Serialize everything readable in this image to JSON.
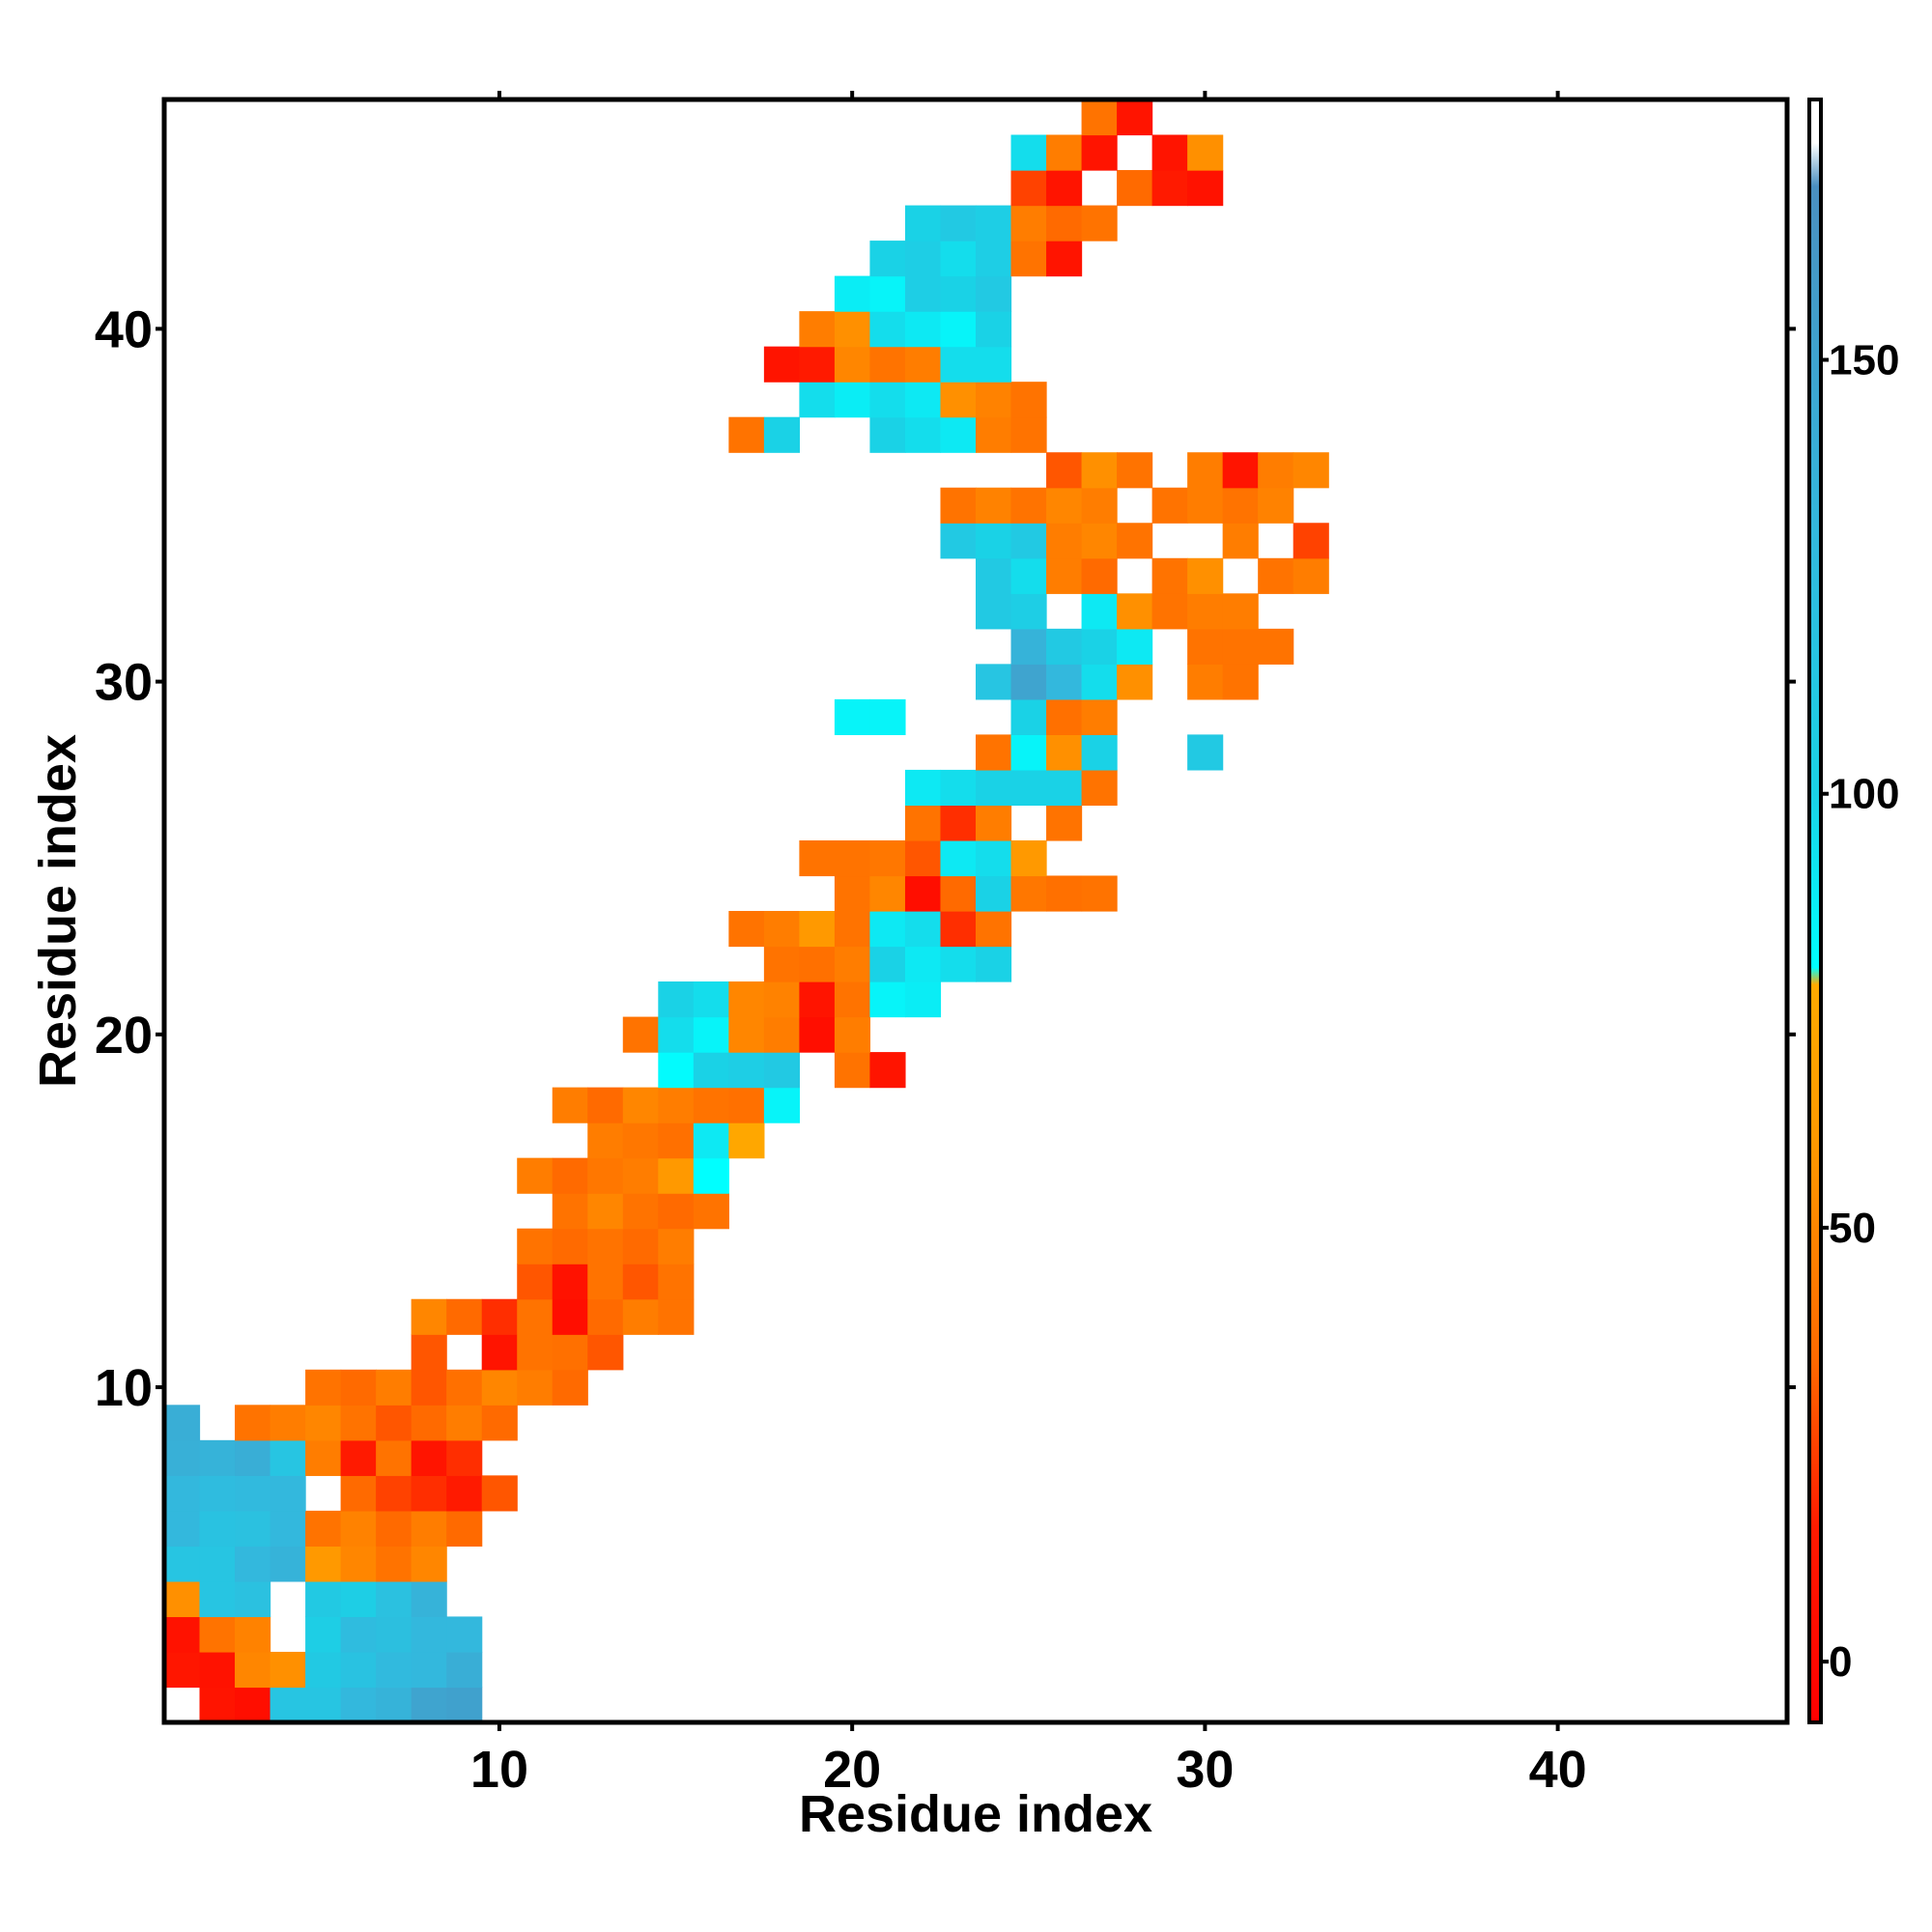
{
  "chart_data": {
    "type": "heatmap",
    "title": "",
    "xlabel": "Residue index",
    "ylabel": "Residue index",
    "xlim": [
      0.5,
      46.5
    ],
    "ylim": [
      0.5,
      46.5
    ],
    "x_ticks": [
      10,
      20,
      30,
      40
    ],
    "y_ticks": [
      10,
      20,
      30,
      40
    ],
    "x_tick_labels": [
      "10",
      "20",
      "30",
      "40"
    ],
    "y_tick_labels": [
      "10",
      "20",
      "30",
      "40"
    ],
    "colorbar": {
      "range": [
        -7,
        180
      ],
      "ticks": [
        0,
        50,
        100,
        150
      ],
      "tick_labels": [
        "0",
        "50",
        "100",
        "150"
      ],
      "stops": [
        {
          "v": -7,
          "color": "#ff0000"
        },
        {
          "v": 15,
          "color": "#ff1a00"
        },
        {
          "v": 35,
          "color": "#ff6a00"
        },
        {
          "v": 60,
          "color": "#ff9900"
        },
        {
          "v": 78,
          "color": "#ffaa00"
        },
        {
          "v": 80,
          "color": "#00ffff"
        },
        {
          "v": 100,
          "color": "#1ad2e6"
        },
        {
          "v": 130,
          "color": "#33b8dd"
        },
        {
          "v": 170,
          "color": "#4a8fc0"
        },
        {
          "v": 175,
          "color": "#ffffff"
        },
        {
          "v": 180,
          "color": "#ffffff"
        }
      ]
    },
    "grid": false,
    "legend": "right colorbar",
    "cells": [
      [
        1,
        2,
        10
      ],
      [
        1,
        3,
        5
      ],
      [
        1,
        4,
        115
      ],
      [
        1,
        5,
        115
      ],
      [
        1,
        6,
        130
      ],
      [
        1,
        7,
        135
      ],
      [
        1,
        8,
        150
      ],
      [
        1,
        9,
        152
      ],
      [
        2,
        1,
        12
      ],
      [
        2,
        2,
        8
      ],
      [
        2,
        3,
        50
      ],
      [
        2,
        4,
        55
      ],
      [
        2,
        5,
        110
      ],
      [
        2,
        6,
        118
      ],
      [
        2,
        7,
        128
      ],
      [
        2,
        8,
        130
      ],
      [
        2,
        9,
        140
      ],
      [
        3,
        1,
        8
      ],
      [
        3,
        2,
        40
      ],
      [
        3,
        3,
        48
      ],
      [
        3,
        5,
        105
      ],
      [
        3,
        6,
        125
      ],
      [
        3,
        7,
        122
      ],
      [
        3,
        8,
        130
      ],
      [
        3,
        9,
        130
      ],
      [
        4,
        1,
        55
      ],
      [
        4,
        2,
        115
      ],
      [
        4,
        3,
        120
      ],
      [
        4,
        5,
        110
      ],
      [
        4,
        6,
        105
      ],
      [
        4,
        7,
        120
      ],
      [
        4,
        8,
        135
      ],
      [
        5,
        1,
        115
      ],
      [
        5,
        2,
        115
      ],
      [
        5,
        3,
        130
      ],
      [
        5,
        4,
        135
      ],
      [
        5,
        5,
        60
      ],
      [
        5,
        6,
        50
      ],
      [
        5,
        7,
        40
      ],
      [
        5,
        8,
        50
      ],
      [
        6,
        1,
        130
      ],
      [
        6,
        2,
        118
      ],
      [
        6,
        3,
        120
      ],
      [
        6,
        4,
        130
      ],
      [
        6,
        5,
        40
      ],
      [
        6,
        6,
        48
      ],
      [
        6,
        7,
        35
      ],
      [
        6,
        8,
        45
      ],
      [
        6,
        9,
        35
      ],
      [
        7,
        1,
        130
      ],
      [
        7,
        2,
        125
      ],
      [
        7,
        3,
        128
      ],
      [
        7,
        4,
        130
      ],
      [
        7,
        6,
        35
      ],
      [
        7,
        7,
        25
      ],
      [
        7,
        8,
        20
      ],
      [
        7,
        9,
        15
      ],
      [
        7,
        10,
        30
      ],
      [
        8,
        1,
        138
      ],
      [
        8,
        2,
        135
      ],
      [
        8,
        3,
        140
      ],
      [
        8,
        4,
        115
      ],
      [
        8,
        5,
        45
      ],
      [
        8,
        6,
        15
      ],
      [
        8,
        7,
        40
      ],
      [
        8,
        8,
        10
      ],
      [
        8,
        9,
        20
      ],
      [
        9,
        1,
        140
      ],
      [
        9,
        3,
        40
      ],
      [
        9,
        4,
        45
      ],
      [
        9,
        5,
        50
      ],
      [
        9,
        6,
        40
      ],
      [
        9,
        7,
        30
      ],
      [
        9,
        8,
        35
      ],
      [
        9,
        9,
        45
      ],
      [
        9,
        10,
        35
      ],
      [
        10,
        5,
        40
      ],
      [
        10,
        6,
        35
      ],
      [
        10,
        7,
        45
      ],
      [
        10,
        8,
        30
      ],
      [
        10,
        9,
        38
      ],
      [
        10,
        10,
        50
      ],
      [
        10,
        11,
        45
      ],
      [
        10,
        12,
        35
      ],
      [
        11,
        8,
        30
      ],
      [
        11,
        10,
        10
      ],
      [
        11,
        11,
        40
      ],
      [
        11,
        12,
        38
      ],
      [
        11,
        13,
        30
      ],
      [
        12,
        8,
        50
      ],
      [
        12,
        9,
        35
      ],
      [
        12,
        10,
        20
      ],
      [
        12,
        11,
        40
      ],
      [
        12,
        12,
        5
      ],
      [
        12,
        13,
        35
      ],
      [
        12,
        14,
        45
      ],
      [
        12,
        15,
        40
      ],
      [
        13,
        11,
        30
      ],
      [
        13,
        12,
        8
      ],
      [
        13,
        13,
        40
      ],
      [
        13,
        14,
        30
      ],
      [
        13,
        15,
        40
      ],
      [
        14,
        11,
        40
      ],
      [
        14,
        12,
        35
      ],
      [
        14,
        13,
        40
      ],
      [
        14,
        14,
        35
      ],
      [
        14,
        15,
        45
      ],
      [
        15,
        12,
        40
      ],
      [
        15,
        13,
        50
      ],
      [
        15,
        14,
        40
      ],
      [
        15,
        15,
        35
      ],
      [
        15,
        16,
        40
      ],
      [
        16,
        11,
        45
      ],
      [
        16,
        12,
        35
      ],
      [
        16,
        13,
        42
      ],
      [
        16,
        14,
        45
      ],
      [
        16,
        15,
        60
      ],
      [
        16,
        16,
        80
      ],
      [
        17,
        13,
        45
      ],
      [
        17,
        14,
        42
      ],
      [
        17,
        15,
        38
      ],
      [
        17,
        16,
        90
      ],
      [
        17,
        17,
        75
      ],
      [
        18,
        12,
        45
      ],
      [
        18,
        13,
        35
      ],
      [
        18,
        14,
        50
      ],
      [
        18,
        15,
        45
      ],
      [
        18,
        16,
        40
      ],
      [
        18,
        17,
        38
      ],
      [
        18,
        18,
        85
      ],
      [
        19,
        15,
        82
      ],
      [
        19,
        16,
        100
      ],
      [
        19,
        17,
        105
      ],
      [
        19,
        18,
        110
      ],
      [
        19,
        20,
        40
      ],
      [
        19,
        21,
        10
      ],
      [
        20,
        14,
        40
      ],
      [
        20,
        15,
        95
      ],
      [
        20,
        16,
        85
      ],
      [
        20,
        17,
        50
      ],
      [
        20,
        18,
        45
      ],
      [
        20,
        19,
        5
      ],
      [
        20,
        20,
        45
      ],
      [
        21,
        15,
        100
      ],
      [
        21,
        16,
        95
      ],
      [
        21,
        17,
        50
      ],
      [
        21,
        18,
        48
      ],
      [
        21,
        19,
        10
      ],
      [
        21,
        20,
        40
      ],
      [
        21,
        21,
        85
      ],
      [
        21,
        22,
        88
      ],
      [
        22,
        18,
        40
      ],
      [
        22,
        19,
        38
      ],
      [
        22,
        20,
        45
      ],
      [
        22,
        21,
        100
      ],
      [
        22,
        22,
        90
      ],
      [
        22,
        23,
        95
      ],
      [
        22,
        24,
        100
      ],
      [
        23,
        17,
        40
      ],
      [
        23,
        18,
        45
      ],
      [
        23,
        19,
        60
      ],
      [
        23,
        20,
        40
      ],
      [
        23,
        21,
        90
      ],
      [
        23,
        22,
        95
      ],
      [
        23,
        23,
        20
      ],
      [
        23,
        24,
        40
      ],
      [
        24,
        20,
        40
      ],
      [
        24,
        21,
        50
      ],
      [
        24,
        22,
        5
      ],
      [
        24,
        23,
        35
      ],
      [
        24,
        24,
        100
      ],
      [
        24,
        25,
        42
      ],
      [
        24,
        26,
        38
      ],
      [
        24,
        27,
        40
      ],
      [
        25,
        19,
        40
      ],
      [
        25,
        20,
        40
      ],
      [
        25,
        21,
        42
      ],
      [
        25,
        22,
        30
      ],
      [
        25,
        23,
        90
      ],
      [
        25,
        24,
        95
      ],
      [
        25,
        25,
        60
      ],
      [
        26,
        22,
        40
      ],
      [
        26,
        23,
        20
      ],
      [
        26,
        24,
        45
      ],
      [
        26,
        26,
        40
      ],
      [
        27,
        22,
        90
      ],
      [
        27,
        23,
        95
      ],
      [
        27,
        24,
        100
      ],
      [
        27,
        25,
        100
      ],
      [
        27,
        26,
        100
      ],
      [
        27,
        27,
        40
      ],
      [
        28,
        24,
        40
      ],
      [
        28,
        25,
        85
      ],
      [
        28,
        26,
        55
      ],
      [
        28,
        27,
        100
      ],
      [
        28,
        30,
        110
      ],
      [
        29,
        20,
        85
      ],
      [
        29,
        21,
        85
      ],
      [
        29,
        25,
        100
      ],
      [
        29,
        26,
        38
      ],
      [
        29,
        27,
        45
      ],
      [
        30,
        24,
        115
      ],
      [
        30,
        25,
        150
      ],
      [
        30,
        26,
        130
      ],
      [
        30,
        27,
        95
      ],
      [
        30,
        28,
        55
      ],
      [
        30,
        30,
        45
      ],
      [
        30,
        31,
        40
      ],
      [
        31,
        25,
        135
      ],
      [
        31,
        26,
        110
      ],
      [
        31,
        27,
        100
      ],
      [
        31,
        28,
        90
      ],
      [
        31,
        30,
        40
      ],
      [
        31,
        31,
        40
      ],
      [
        31,
        32,
        40
      ],
      [
        32,
        24,
        110
      ],
      [
        32,
        25,
        105
      ],
      [
        32,
        27,
        90
      ],
      [
        32,
        28,
        55
      ],
      [
        32,
        29,
        40
      ],
      [
        32,
        30,
        45
      ],
      [
        32,
        31,
        45
      ],
      [
        33,
        24,
        110
      ],
      [
        33,
        25,
        95
      ],
      [
        33,
        26,
        45
      ],
      [
        33,
        27,
        35
      ],
      [
        33,
        29,
        40
      ],
      [
        33,
        30,
        55
      ],
      [
        33,
        32,
        40
      ],
      [
        33,
        33,
        45
      ],
      [
        34,
        23,
        110
      ],
      [
        34,
        24,
        100
      ],
      [
        34,
        25,
        110
      ],
      [
        34,
        26,
        45
      ],
      [
        34,
        27,
        50
      ],
      [
        34,
        28,
        40
      ],
      [
        34,
        31,
        45
      ],
      [
        34,
        33,
        25
      ],
      [
        35,
        23,
        40
      ],
      [
        35,
        24,
        48
      ],
      [
        35,
        25,
        40
      ],
      [
        35,
        26,
        50
      ],
      [
        35,
        27,
        45
      ],
      [
        35,
        29,
        40
      ],
      [
        35,
        30,
        45
      ],
      [
        35,
        31,
        40
      ],
      [
        35,
        32,
        48
      ],
      [
        36,
        26,
        30
      ],
      [
        36,
        27,
        55
      ],
      [
        36,
        28,
        40
      ],
      [
        36,
        30,
        45
      ],
      [
        36,
        31,
        10
      ],
      [
        36,
        32,
        45
      ],
      [
        36,
        33,
        50
      ],
      [
        37,
        17,
        40
      ],
      [
        37,
        18,
        100
      ],
      [
        37,
        21,
        100
      ],
      [
        37,
        22,
        95
      ],
      [
        37,
        23,
        90
      ],
      [
        37,
        24,
        45
      ],
      [
        37,
        25,
        40
      ],
      [
        38,
        19,
        95
      ],
      [
        38,
        20,
        88
      ],
      [
        38,
        21,
        95
      ],
      [
        38,
        22,
        90
      ],
      [
        38,
        23,
        55
      ],
      [
        38,
        24,
        48
      ],
      [
        38,
        25,
        40
      ],
      [
        39,
        18,
        10
      ],
      [
        39,
        19,
        15
      ],
      [
        39,
        20,
        50
      ],
      [
        39,
        21,
        40
      ],
      [
        39,
        22,
        45
      ],
      [
        39,
        23,
        95
      ],
      [
        39,
        24,
        95
      ],
      [
        40,
        19,
        45
      ],
      [
        40,
        20,
        55
      ],
      [
        40,
        21,
        95
      ],
      [
        40,
        22,
        90
      ],
      [
        40,
        23,
        85
      ],
      [
        40,
        24,
        100
      ],
      [
        41,
        20,
        88
      ],
      [
        41,
        21,
        85
      ],
      [
        41,
        22,
        105
      ],
      [
        41,
        23,
        100
      ],
      [
        41,
        24,
        110
      ],
      [
        42,
        21,
        100
      ],
      [
        42,
        22,
        105
      ],
      [
        42,
        23,
        95
      ],
      [
        42,
        24,
        105
      ],
      [
        42,
        25,
        40
      ],
      [
        42,
        26,
        10
      ],
      [
        43,
        22,
        100
      ],
      [
        43,
        23,
        110
      ],
      [
        43,
        24,
        105
      ],
      [
        43,
        25,
        45
      ],
      [
        43,
        26,
        35
      ],
      [
        43,
        27,
        40
      ],
      [
        44,
        25,
        25
      ],
      [
        44,
        26,
        10
      ],
      [
        44,
        28,
        35
      ],
      [
        44,
        29,
        15
      ],
      [
        44,
        30,
        8
      ],
      [
        45,
        25,
        95
      ],
      [
        45,
        26,
        45
      ],
      [
        45,
        27,
        10
      ],
      [
        45,
        29,
        10
      ],
      [
        45,
        30,
        55
      ],
      [
        46,
        27,
        40
      ],
      [
        46,
        28,
        10
      ]
    ]
  }
}
